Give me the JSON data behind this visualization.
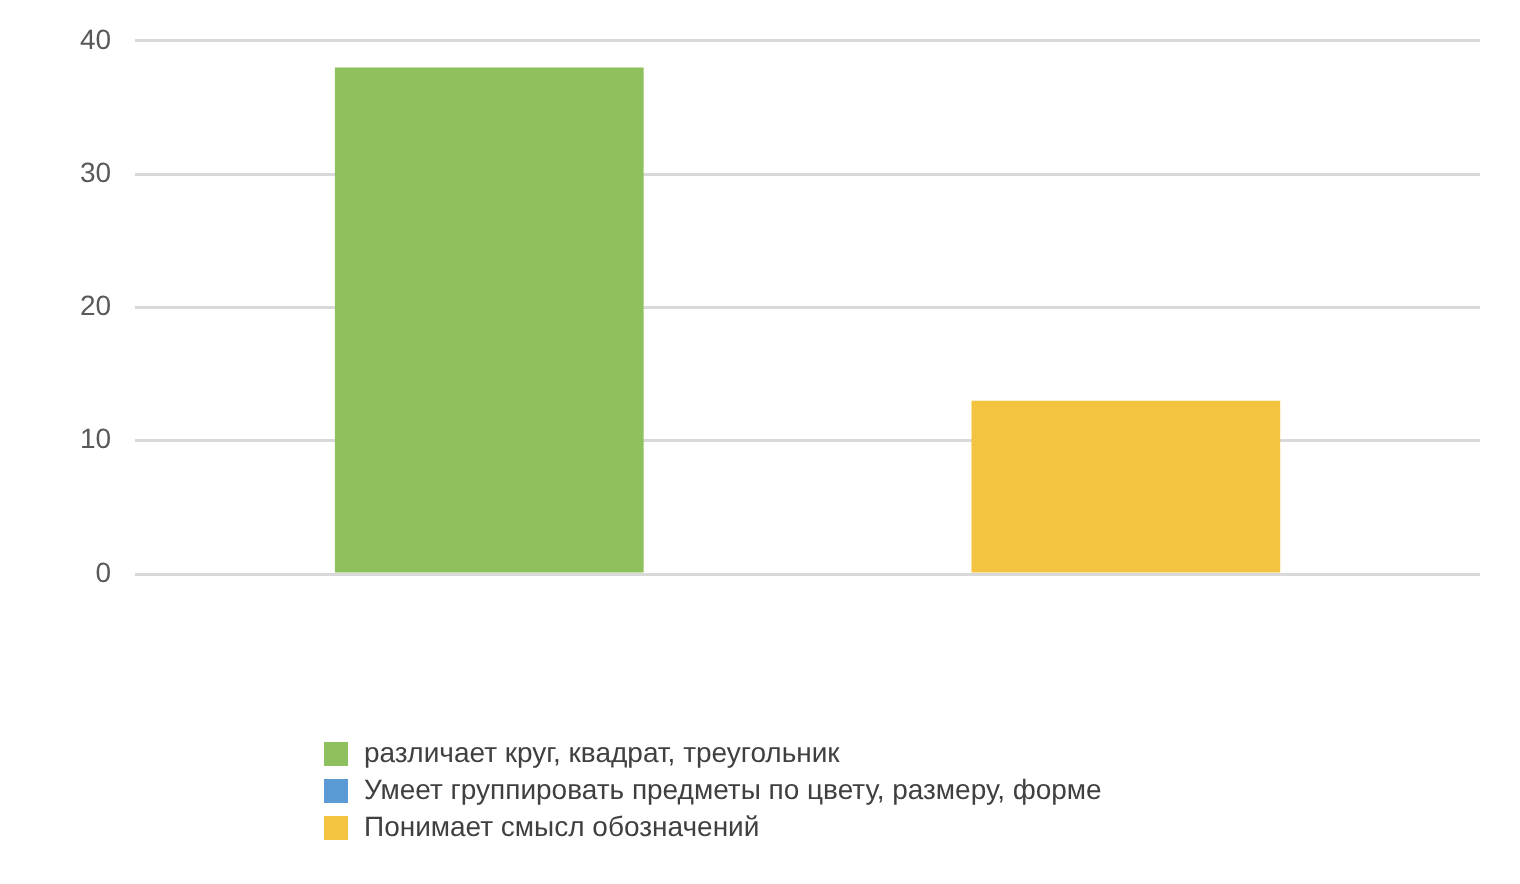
{
  "chart_data": {
    "type": "bar",
    "categories": [
      null
    ],
    "series": [
      {
        "name": "различает круг, квадрат, треугольник",
        "color": "#8fc05e",
        "values": [
          38
        ]
      },
      {
        "name": "Умеет группировать предметы по цвету, размеру, форме",
        "color": "#5b9bd5",
        "values": [
          0
        ]
      },
      {
        "name": "Понимает смысл обозначений",
        "color": "#f4c441",
        "values": [
          13
        ]
      }
    ],
    "ylim": [
      0,
      40
    ],
    "yticks": [
      0,
      10,
      20,
      30,
      40
    ],
    "grid": "y",
    "legend": "bottom"
  }
}
